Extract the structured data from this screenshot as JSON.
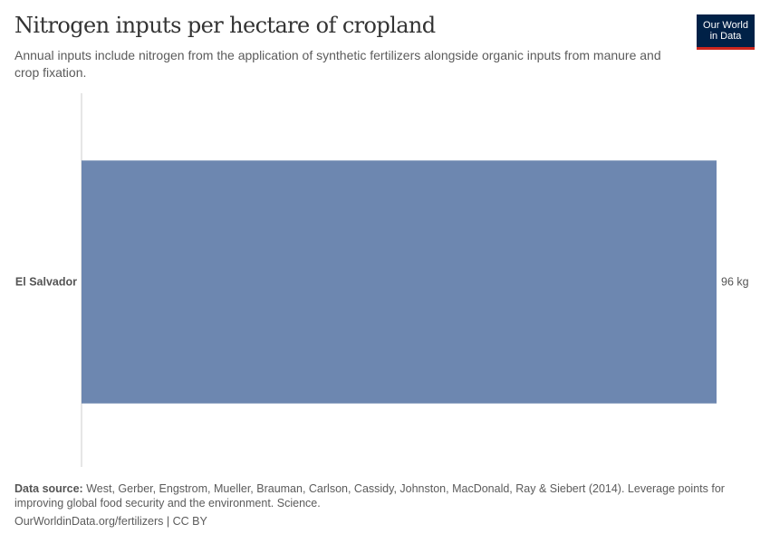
{
  "header": {
    "title": "Nitrogen inputs per hectare of cropland",
    "subtitle": "Annual inputs include nitrogen from the application of synthetic fertilizers alongside organic inputs from manure and crop fixation.",
    "logo_line1": "Our World",
    "logo_line2": "in Data"
  },
  "chart_data": {
    "type": "bar",
    "orientation": "horizontal",
    "categories": [
      "El Salvador"
    ],
    "values": [
      96
    ],
    "value_labels": [
      "96 kg"
    ],
    "unit": "kg",
    "xlim": [
      0,
      96
    ],
    "grid": false,
    "colors": [
      "#6D87B0"
    ]
  },
  "footer": {
    "source_label": "Data source:",
    "source_text": " West, Gerber, Engstrom, Mueller, Brauman, Carlson, Cassidy, Johnston, MacDonald, Ray & Siebert (2014). Leverage points for improving global food security and the environment. Science.",
    "url": "OurWorldinData.org/fertilizers",
    "license": "CC BY"
  }
}
